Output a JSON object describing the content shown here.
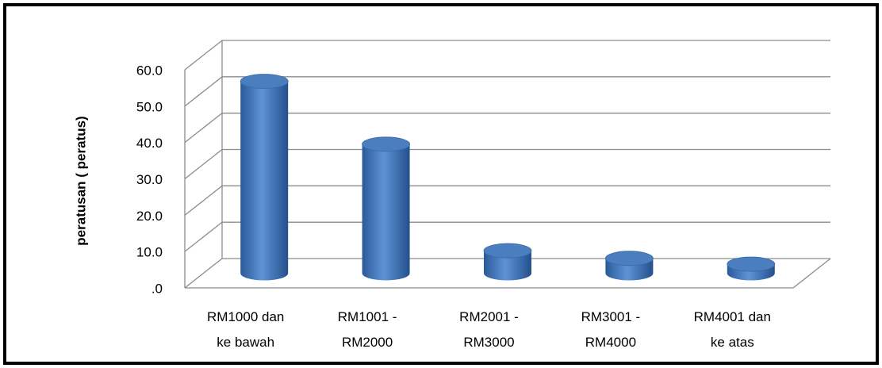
{
  "chart_data": {
    "type": "bar3d",
    "y_label": "peratusan ( peratus)",
    "categories": [
      "RM1000 dan ke bawah",
      "RM1001 - RM2000",
      "RM2001 - RM3000",
      "RM3001 - RM4000",
      "RM4001 dan ke atas"
    ],
    "values": [
      52.8,
      35.5,
      6.2,
      4.1,
      2.5
    ],
    "color": "#4a7ebf",
    "ylim": [
      0,
      60
    ],
    "yticks": [
      {
        "value": 0,
        "label": ".0"
      },
      {
        "value": 10,
        "label": "10.0"
      },
      {
        "value": 20,
        "label": "20.0"
      },
      {
        "value": 30,
        "label": "30.0"
      },
      {
        "value": 40,
        "label": "40.0"
      },
      {
        "value": 50,
        "label": "50.0"
      },
      {
        "value": 60,
        "label": "60.0"
      }
    ],
    "grid": true
  }
}
